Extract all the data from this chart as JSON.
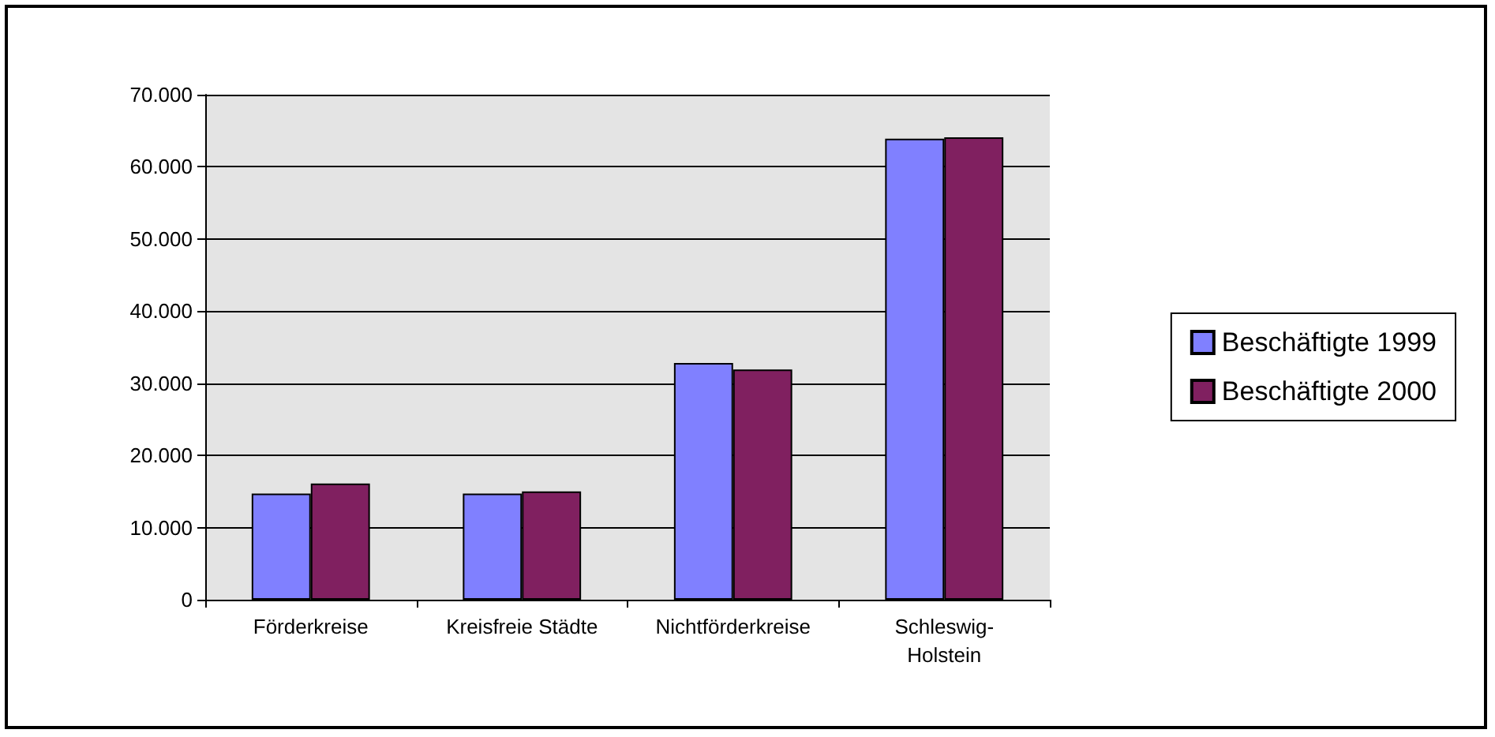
{
  "chart_data": {
    "type": "bar",
    "categories": [
      "Förderkreise",
      "Kreisfreie Städte",
      "Nichtförderkreise",
      "Schleswig-Holstein"
    ],
    "series": [
      {
        "name": "Beschäftigte 1999",
        "color": "#8080ff",
        "values": [
          14700,
          14700,
          32800,
          63900
        ]
      },
      {
        "name": "Beschäftigte 2000",
        "color": "#802060",
        "values": [
          16100,
          15000,
          31900,
          64100
        ]
      }
    ],
    "ylim": [
      0,
      70000
    ],
    "yticks": [
      {
        "value": 0,
        "label": "0"
      },
      {
        "value": 10000,
        "label": "10.000"
      },
      {
        "value": 20000,
        "label": "20.000"
      },
      {
        "value": 30000,
        "label": "30.000"
      },
      {
        "value": 40000,
        "label": "40.000"
      },
      {
        "value": 50000,
        "label": "50.000"
      },
      {
        "value": 60000,
        "label": "60.000"
      },
      {
        "value": 70000,
        "label": "70.000"
      }
    ],
    "grid": "y",
    "legend": "right"
  }
}
